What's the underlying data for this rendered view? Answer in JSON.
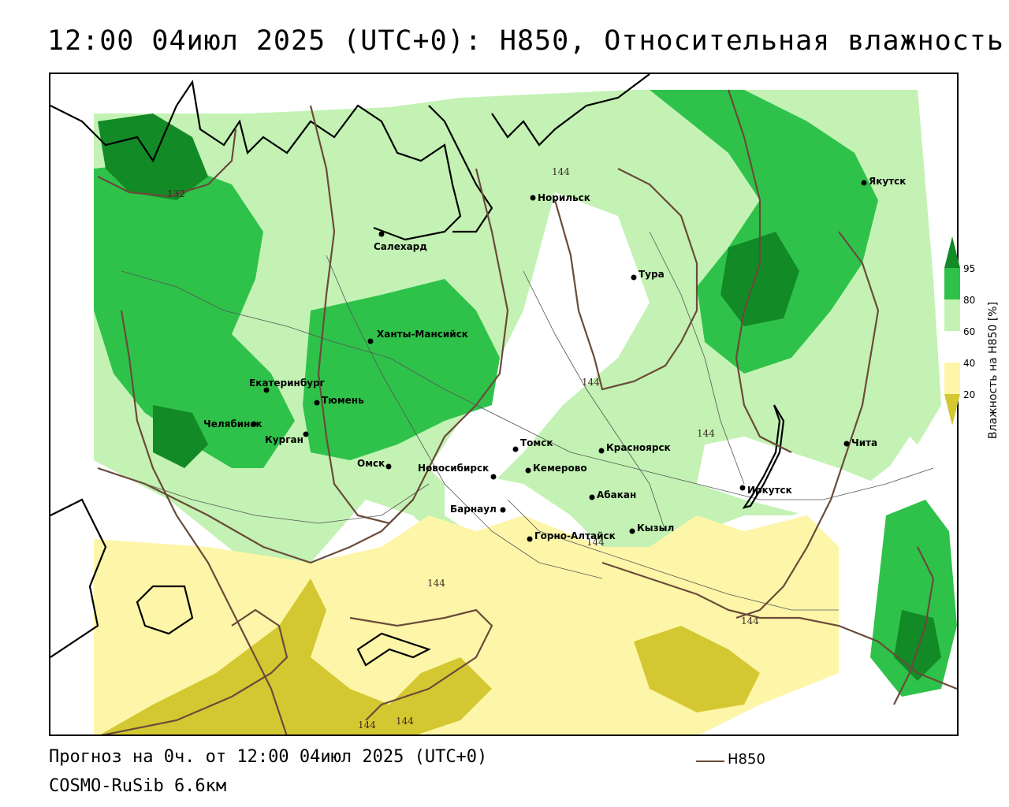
{
  "header": {
    "title": "12:00 04июл 2025 (UTC+0): H850, Относительная влажность"
  },
  "map": {
    "colors": {
      "rh_below_20": "#d4c832",
      "rh_20_40": "#fdf6a8",
      "rh_40_60": "#ffffff",
      "rh_60_80": "#c3f2b4",
      "rh_80_95": "#2fc24a",
      "rh_above_95": "#128a26",
      "contour": "#6b4a3a",
      "coastline": "#000000",
      "borders": "#555555"
    },
    "cities": [
      {
        "name": "Норильск"
      },
      {
        "name": "Якутск"
      },
      {
        "name": "Салехард"
      },
      {
        "name": "Тура"
      },
      {
        "name": "Ханты-Мансийск"
      },
      {
        "name": "Екатеринбург"
      },
      {
        "name": "Тюмень"
      },
      {
        "name": "Челябинск"
      },
      {
        "name": "Курган"
      },
      {
        "name": "Омск"
      },
      {
        "name": "Новосибирск"
      },
      {
        "name": "Томск"
      },
      {
        "name": "Кемерово"
      },
      {
        "name": "Красноярск"
      },
      {
        "name": "Барнаул"
      },
      {
        "name": "Абакан"
      },
      {
        "name": "Кызыл"
      },
      {
        "name": "Горно-Алтайск"
      },
      {
        "name": "Иркутск"
      },
      {
        "name": "Чита"
      }
    ],
    "contour_labels": [
      "132",
      "144",
      "144",
      "144",
      "144",
      "144",
      "144",
      "144",
      "144"
    ]
  },
  "colorbar": {
    "ticks": [
      "95",
      "80",
      "60",
      "40",
      "20"
    ],
    "title": "Влажность на H850 [%]"
  },
  "footer": {
    "forecast": "Прогноз на 0ч. от 12:00 04июл 2025 (UTC+0)",
    "model": "COSMO-RuSib 6.6км",
    "legend_label": "H850"
  }
}
